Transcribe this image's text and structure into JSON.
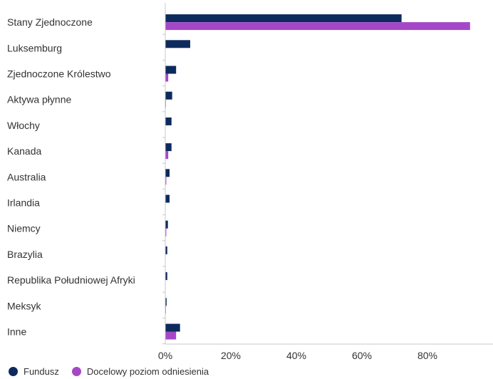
{
  "chart_data": {
    "type": "bar",
    "orientation": "horizontal",
    "categories": [
      "Stany Zjednoczone",
      "Luksemburg",
      "Zjednoczone Królestwo",
      "Aktywa płynne",
      "Włochy",
      "Kanada",
      "Australia",
      "Irlandia",
      "Niemcy",
      "Brazylia",
      "Republika Południowej Afryki",
      "Meksyk",
      "Inne"
    ],
    "series": [
      {
        "name": "Fundusz",
        "color": "#0d2a5c",
        "values": [
          72.1,
          7.6,
          3.3,
          2.1,
          1.9,
          1.9,
          1.3,
          1.3,
          0.8,
          0.6,
          0.6,
          0.4,
          4.5
        ]
      },
      {
        "name": "Docelowy poziom odniesienia",
        "color": "#a548c8",
        "values": [
          93.0,
          0.0,
          0.9,
          0.2,
          0.0,
          0.9,
          0.3,
          0.0,
          0.3,
          0.0,
          0.0,
          0.2,
          3.3
        ]
      }
    ],
    "xlim": [
      0,
      100
    ],
    "xticks": [
      "0%",
      "20%",
      "40%",
      "60%",
      "80%"
    ],
    "tick_values": [
      0,
      20,
      40,
      60,
      80
    ],
    "legend_position": "bottom-left",
    "grid": false
  }
}
